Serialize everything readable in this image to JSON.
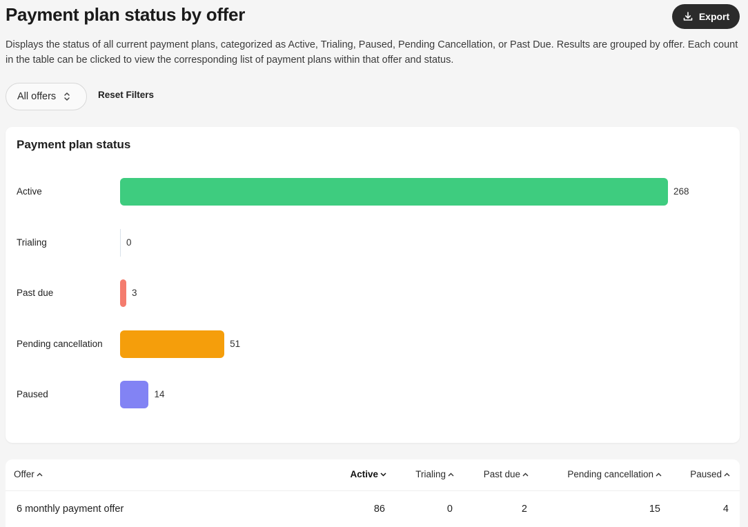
{
  "header": {
    "title": "Payment plan status by offer",
    "export_label": "Export",
    "description": "Displays the status of all current payment plans, categorized as Active, Trialing, Paused, Pending Cancellation, or Past Due. Results are grouped by offer. Each count in the table can be clicked to view the corresponding list of payment plans within that offer and status."
  },
  "filters": {
    "offer_select_value": "All offers",
    "reset_label": "Reset Filters"
  },
  "chart_card": {
    "title": "Payment plan status"
  },
  "chart_data": {
    "type": "bar",
    "orientation": "horizontal",
    "title": "Payment plan status",
    "categories": [
      "Active",
      "Trialing",
      "Past due",
      "Pending cancellation",
      "Paused"
    ],
    "values": [
      268,
      0,
      3,
      51,
      14
    ],
    "colors": [
      "#3ecc7f",
      "#d9e1ea",
      "#f47c6e",
      "#f59e0b",
      "#8283f4"
    ],
    "data_labels": [
      "268",
      "0",
      "3",
      "51",
      "14"
    ],
    "xlim": [
      0,
      268
    ],
    "grid": false
  },
  "table": {
    "columns": [
      {
        "label": "Offer",
        "sort": "up"
      },
      {
        "label": "Active",
        "sort": "down"
      },
      {
        "label": "Trialing",
        "sort": "up"
      },
      {
        "label": "Past due",
        "sort": "up"
      },
      {
        "label": "Pending cancellation",
        "sort": "up"
      },
      {
        "label": "Paused",
        "sort": "up"
      }
    ],
    "rows": [
      {
        "offer": "6 monthly payment offer",
        "active": "86",
        "trialing": "0",
        "past_due": "2",
        "pending_cancellation": "15",
        "paused": "4"
      }
    ]
  }
}
